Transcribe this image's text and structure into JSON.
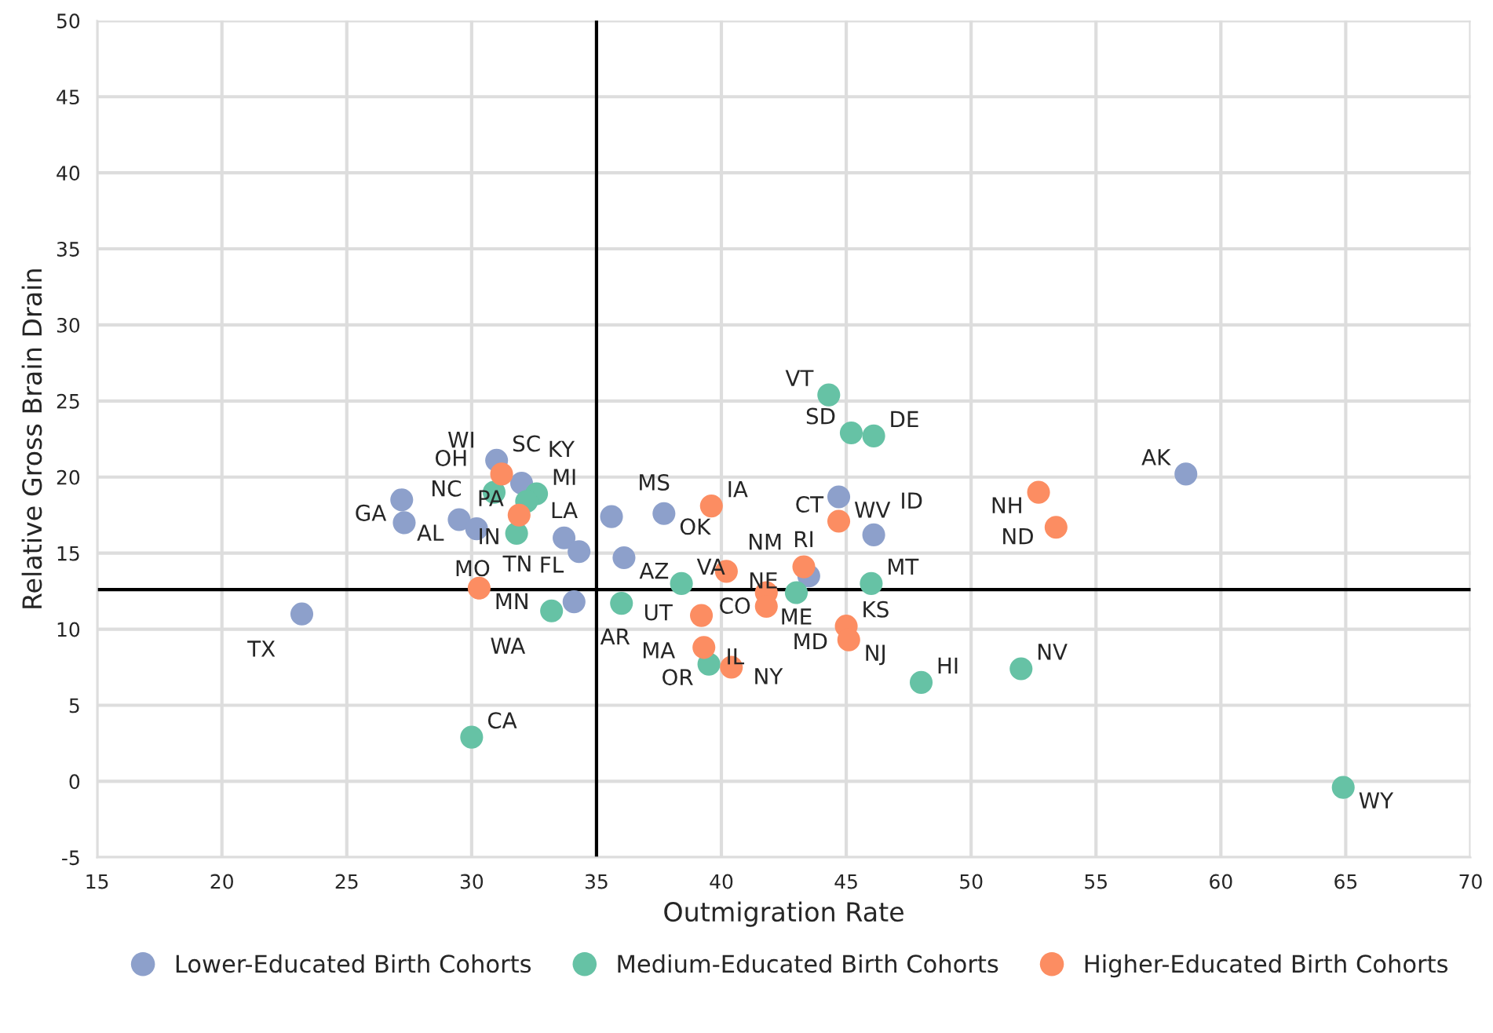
{
  "chart_data": {
    "type": "scatter",
    "xlabel": "Outmigration Rate",
    "ylabel": "Relative Gross Brain Drain",
    "xlim": [
      15,
      70
    ],
    "ylim": [
      -5,
      50
    ],
    "xticks": [
      15,
      20,
      25,
      30,
      35,
      40,
      45,
      50,
      55,
      60,
      65,
      70
    ],
    "yticks": [
      -5,
      0,
      5,
      10,
      15,
      20,
      25,
      30,
      35,
      40,
      45,
      50
    ],
    "grid": true,
    "legend": "bottom",
    "marker": "circle",
    "ref_lines": [
      {
        "axis": "x",
        "value": 35,
        "color": "#000000"
      },
      {
        "axis": "y",
        "value": 12.6,
        "color": "#000000"
      }
    ],
    "series": [
      {
        "name": "Lower-Educated Birth Cohorts",
        "color": "#8da0cb",
        "x": [
          27.2,
          27.3,
          29.5,
          30.2,
          31.0,
          32.0,
          33.7,
          34.3,
          35.6,
          37.7,
          36.1,
          34.1,
          23.2,
          44.7,
          46.1,
          43.5,
          58.6
        ],
        "values": [
          18.5,
          17.0,
          17.2,
          16.6,
          21.1,
          19.6,
          16.0,
          15.1,
          17.4,
          17.6,
          14.7,
          11.8,
          11.0,
          18.7,
          16.2,
          13.5,
          20.2
        ]
      },
      {
        "name": "Medium-Educated Birth Cohorts",
        "color": "#66c2a5",
        "x": [
          30.9,
          32.6,
          32.2,
          31.8,
          33.2,
          36.0,
          38.4,
          44.3,
          45.2,
          46.1,
          43.0,
          46.0,
          39.5,
          48.0,
          52.0,
          64.9,
          30.0
        ],
        "values": [
          19.0,
          18.9,
          18.4,
          16.3,
          11.2,
          11.7,
          13.0,
          25.4,
          22.9,
          22.7,
          12.4,
          13.0,
          7.7,
          6.5,
          7.4,
          -0.4,
          2.9
        ]
      },
      {
        "name": "Higher-Educated Birth Cohorts",
        "color": "#fc8d62",
        "x": [
          31.2,
          31.9,
          30.3,
          39.6,
          40.2,
          41.8,
          41.8,
          43.3,
          44.7,
          45.0,
          45.1,
          39.2,
          39.3,
          40.4,
          52.7,
          53.4
        ],
        "values": [
          20.2,
          17.5,
          12.7,
          18.1,
          13.8,
          12.4,
          11.5,
          14.1,
          17.1,
          10.2,
          9.3,
          10.9,
          8.8,
          7.5,
          19.0,
          16.7
        ]
      }
    ],
    "annotations": [
      {
        "text": "GA",
        "x": 27.2,
        "y": 18.5
      },
      {
        "text": "NC",
        "x": 27.3,
        "y": 17.0
      },
      {
        "text": "AL",
        "x": 29.5,
        "y": 17.2
      },
      {
        "text": "TN",
        "x": 30.2,
        "y": 16.6
      },
      {
        "text": "SC",
        "x": 31.0,
        "y": 21.1
      },
      {
        "text": "KY",
        "x": 32.0,
        "y": 19.6
      },
      {
        "text": "LA",
        "x": 33.7,
        "y": 16.0
      },
      {
        "text": "FL",
        "x": 34.3,
        "y": 15.1
      },
      {
        "text": "MS",
        "x": 35.6,
        "y": 17.4
      },
      {
        "text": "OK",
        "x": 37.7,
        "y": 17.6
      },
      {
        "text": "AZ",
        "x": 36.1,
        "y": 14.7
      },
      {
        "text": "AR",
        "x": 34.1,
        "y": 11.8
      },
      {
        "text": "TX",
        "x": 23.2,
        "y": 11.0
      },
      {
        "text": "WV",
        "x": 44.7,
        "y": 18.7
      },
      {
        "text": "ID",
        "x": 46.1,
        "y": 16.2
      },
      {
        "text": "NM",
        "x": 43.5,
        "y": 13.5
      },
      {
        "text": "AK",
        "x": 58.6,
        "y": 20.2
      },
      {
        "text": "OH",
        "x": 30.9,
        "y": 19.0
      },
      {
        "text": "MI",
        "x": 32.6,
        "y": 18.9
      },
      {
        "text": "IN",
        "x": 32.2,
        "y": 18.4
      },
      {
        "text": "MO",
        "x": 31.8,
        "y": 16.3
      },
      {
        "text": "WA",
        "x": 33.2,
        "y": 11.2
      },
      {
        "text": "UT",
        "x": 36.0,
        "y": 11.7
      },
      {
        "text": "VA",
        "x": 38.4,
        "y": 13.0
      },
      {
        "text": "VT",
        "x": 44.3,
        "y": 25.4
      },
      {
        "text": "SD",
        "x": 45.2,
        "y": 22.9
      },
      {
        "text": "DE",
        "x": 46.1,
        "y": 22.7
      },
      {
        "text": "ME",
        "x": 43.0,
        "y": 12.4
      },
      {
        "text": "MT",
        "x": 46.0,
        "y": 13.0
      },
      {
        "text": "OR",
        "x": 39.5,
        "y": 7.7
      },
      {
        "text": "HI",
        "x": 48.0,
        "y": 6.5
      },
      {
        "text": "NV",
        "x": 52.0,
        "y": 7.4
      },
      {
        "text": "WY",
        "x": 64.9,
        "y": -0.4
      },
      {
        "text": "CA",
        "x": 30.0,
        "y": 2.9
      },
      {
        "text": "WI",
        "x": 31.2,
        "y": 20.2
      },
      {
        "text": "PA",
        "x": 31.9,
        "y": 17.5
      },
      {
        "text": "MN",
        "x": 30.3,
        "y": 12.7
      },
      {
        "text": "IA",
        "x": 39.6,
        "y": 18.1
      },
      {
        "text": "NE",
        "x": 40.2,
        "y": 13.8
      },
      {
        "text": "CO",
        "x": 41.8,
        "y": 12.4
      },
      {
        "text": "MD",
        "x": 41.8,
        "y": 11.5
      },
      {
        "text": "RI",
        "x": 43.3,
        "y": 14.1
      },
      {
        "text": "CT",
        "x": 44.7,
        "y": 17.1
      },
      {
        "text": "KS",
        "x": 45.0,
        "y": 10.2
      },
      {
        "text": "NJ",
        "x": 45.1,
        "y": 9.3
      },
      {
        "text": "MA",
        "x": 39.2,
        "y": 10.9
      },
      {
        "text": "IL",
        "x": 39.3,
        "y": 8.8
      },
      {
        "text": "NY",
        "x": 40.4,
        "y": 7.5
      },
      {
        "text": "NH",
        "x": 52.7,
        "y": 19.0
      },
      {
        "text": "ND",
        "x": 53.4,
        "y": 16.7
      }
    ]
  }
}
